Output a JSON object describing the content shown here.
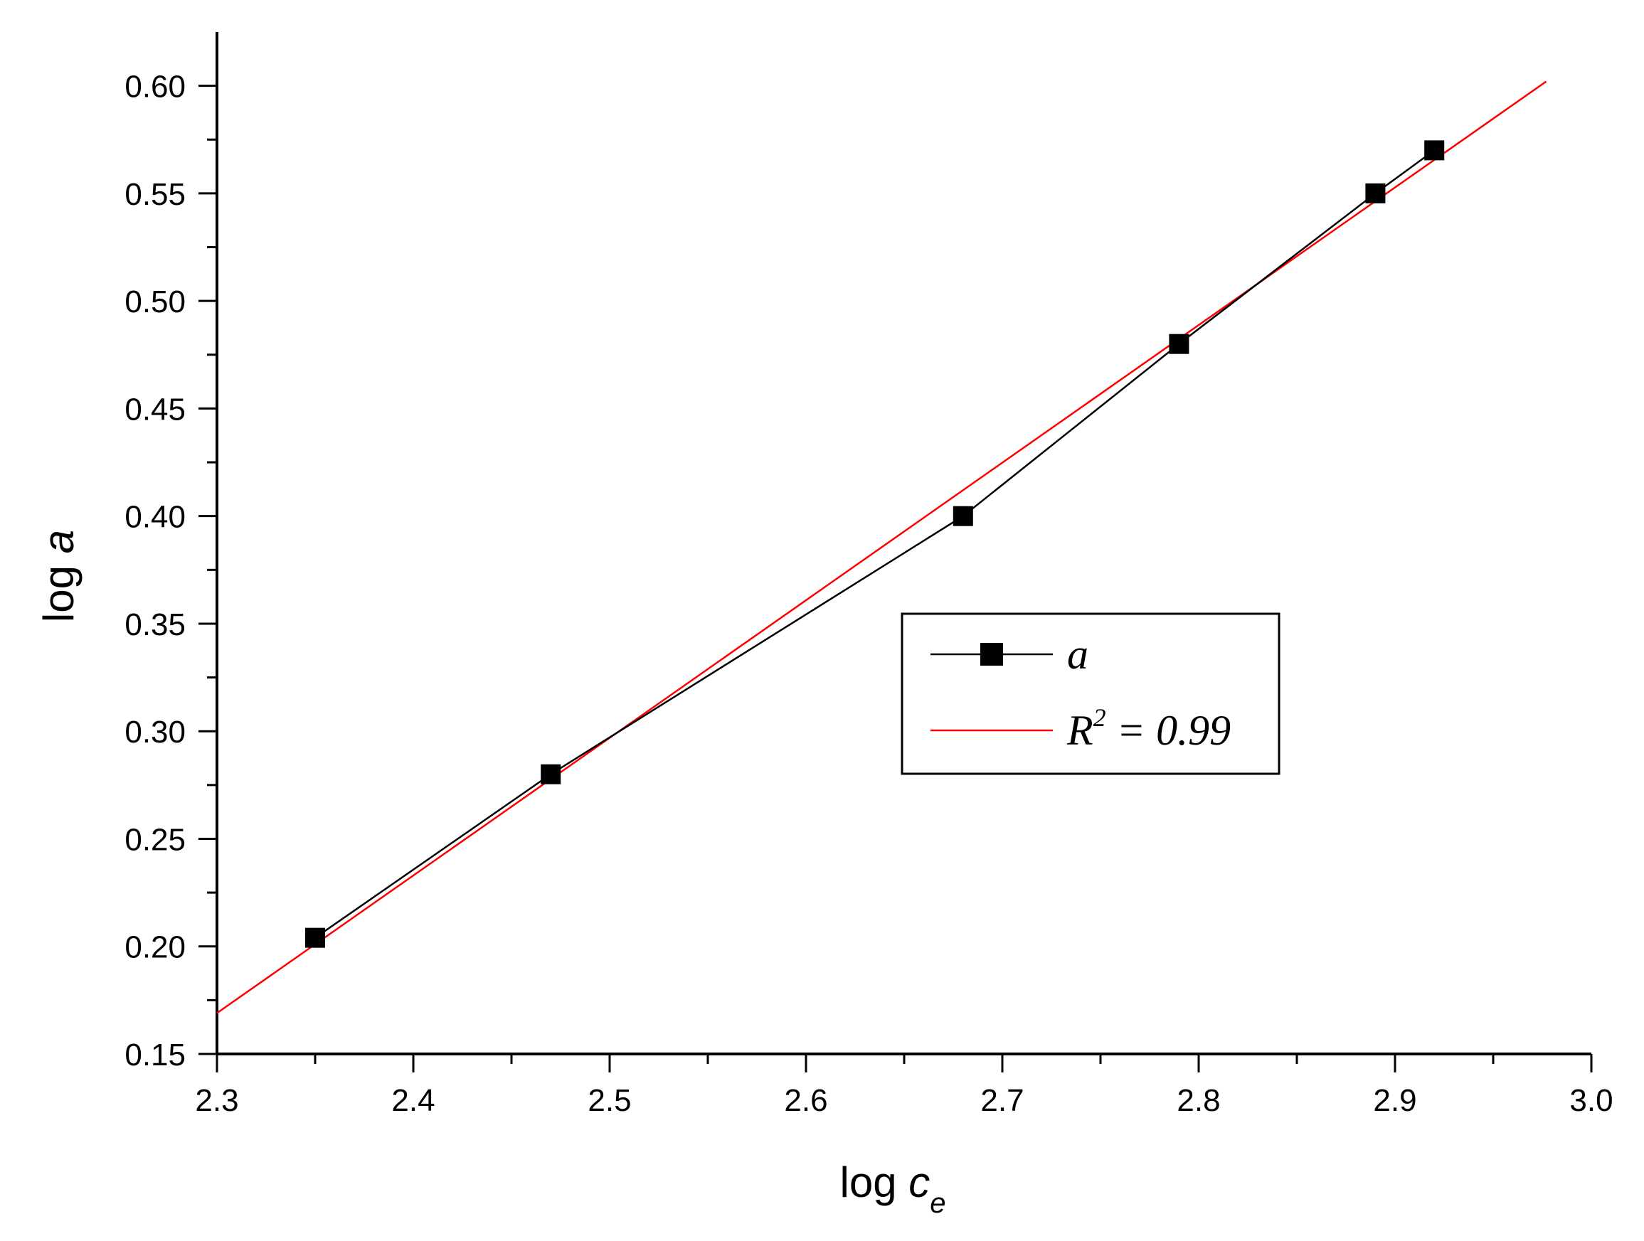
{
  "chart_data": {
    "type": "scatter",
    "xlabel": {
      "main": "log ",
      "italic": "c",
      "sub": "e"
    },
    "ylabel": {
      "main": "log ",
      "italic": "a"
    },
    "xlim": [
      2.3,
      3.0
    ],
    "ylim": [
      0.15,
      0.625
    ],
    "x_major_ticks": [
      2.3,
      2.4,
      2.5,
      2.6,
      2.7,
      2.8,
      2.9,
      3.0
    ],
    "x_tick_labels": [
      "2.3",
      "2.4",
      "2.5",
      "2.6",
      "2.7",
      "2.8",
      "2.9",
      "3.0"
    ],
    "x_minor_step": 0.05,
    "y_major_ticks": [
      0.15,
      0.2,
      0.25,
      0.3,
      0.35,
      0.4,
      0.45,
      0.5,
      0.55,
      0.6
    ],
    "y_tick_labels": [
      "0.15",
      "0.20",
      "0.25",
      "0.30",
      "0.35",
      "0.40",
      "0.45",
      "0.50",
      "0.55",
      "0.60"
    ],
    "y_minor_step": 0.025,
    "grid": false,
    "legend_position": "center-right",
    "series": [
      {
        "name": "a",
        "style": "line+square-markers",
        "color": "#000000",
        "x": [
          2.35,
          2.47,
          2.68,
          2.79,
          2.89,
          2.92
        ],
        "y": [
          0.204,
          0.28,
          0.4,
          0.48,
          0.55,
          0.57
        ]
      },
      {
        "name_parts": {
          "main": "R",
          "sup": "2",
          "rest": " = 0.99"
        },
        "style": "fit-line",
        "color": "#ff0000",
        "x": [
          2.3,
          2.977
        ],
        "y": [
          0.169,
          0.602
        ]
      }
    ]
  }
}
